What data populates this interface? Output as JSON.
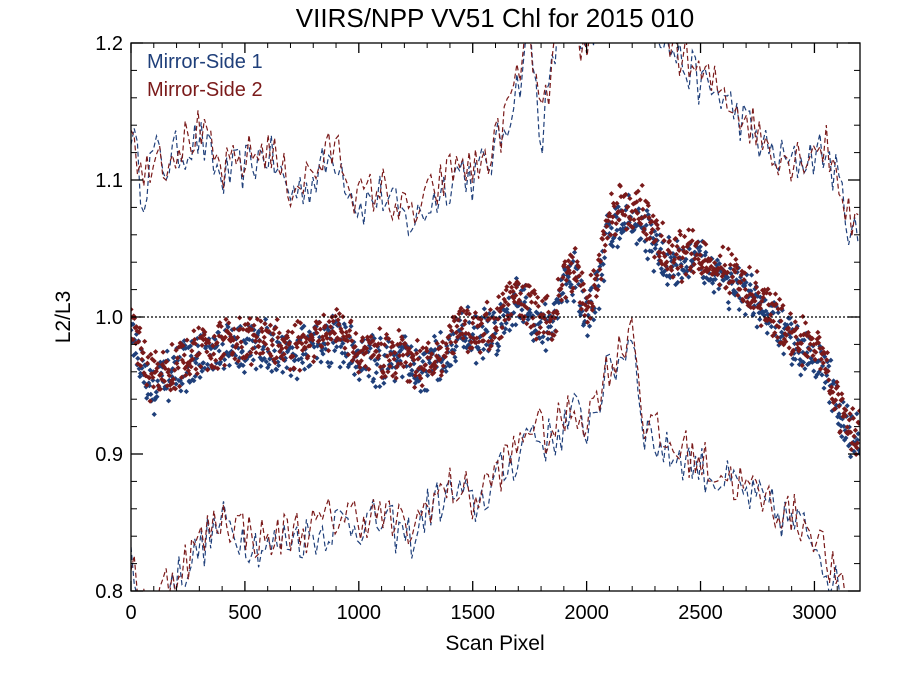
{
  "chart_data": {
    "type": "scatter",
    "title": "VIIRS/NPP VV51 Chl for 2015 010",
    "xlabel": "Scan Pixel",
    "ylabel": "L2/L3",
    "xlim": [
      0,
      3200
    ],
    "ylim": [
      0.8,
      1.2
    ],
    "x_ticks": [
      0,
      500,
      1000,
      1500,
      2000,
      2500,
      3000
    ],
    "x_tick_labels": [
      "0",
      "500",
      "1000",
      "1500",
      "2000",
      "2500",
      "3000"
    ],
    "y_ticks": [
      0.8,
      0.9,
      1.0,
      1.1,
      1.2
    ],
    "y_tick_labels": [
      "0.8",
      "0.9",
      "1.0",
      "1.1",
      "1.2"
    ],
    "grid": false,
    "legend_position": "top-left",
    "reference_line": {
      "y": 1.0,
      "style": "dotted",
      "color": "#000000"
    },
    "series": [
      {
        "name": "Mirror-Side 1",
        "color": "#1f3f7a",
        "marker": "diamond",
        "x": [
          0,
          50,
          100,
          150,
          200,
          300,
          400,
          500,
          600,
          700,
          800,
          900,
          1000,
          1100,
          1200,
          1250,
          1300,
          1400,
          1450,
          1500,
          1600,
          1700,
          1750,
          1800,
          1850,
          1900,
          1950,
          2000,
          2050,
          2100,
          2150,
          2200,
          2250,
          2300,
          2350,
          2400,
          2500,
          2600,
          2700,
          2800,
          2900,
          3000,
          3050,
          3100,
          3150,
          3200
        ],
        "mean": [
          0.995,
          0.96,
          0.945,
          0.955,
          0.96,
          0.97,
          0.975,
          0.978,
          0.98,
          0.972,
          0.978,
          0.985,
          0.97,
          0.968,
          0.972,
          0.958,
          0.962,
          0.975,
          0.99,
          0.985,
          0.99,
          1.015,
          1.0,
          0.995,
          0.99,
          1.025,
          1.03,
          1.0,
          1.02,
          1.065,
          1.07,
          1.07,
          1.065,
          1.05,
          1.04,
          1.04,
          1.04,
          1.03,
          1.015,
          1.0,
          0.98,
          0.975,
          0.96,
          0.935,
          0.915,
          0.91
        ],
        "upper": [
          1.14,
          1.09,
          1.12,
          1.11,
          1.12,
          1.13,
          1.1,
          1.11,
          1.12,
          1.09,
          1.1,
          1.12,
          1.08,
          1.09,
          1.07,
          1.07,
          1.08,
          1.1,
          1.11,
          1.1,
          1.12,
          1.17,
          1.21,
          1.13,
          1.18,
          1.24,
          1.2,
          1.19,
          1.22,
          1.25,
          1.23,
          1.22,
          1.22,
          1.22,
          1.2,
          1.19,
          1.17,
          1.16,
          1.14,
          1.12,
          1.11,
          1.12,
          1.12,
          1.1,
          1.07,
          1.05
        ],
        "lower": [
          0.82,
          0.79,
          0.78,
          0.8,
          0.81,
          0.83,
          0.85,
          0.84,
          0.83,
          0.84,
          0.84,
          0.85,
          0.85,
          0.85,
          0.84,
          0.84,
          0.86,
          0.87,
          0.87,
          0.86,
          0.88,
          0.9,
          0.92,
          0.91,
          0.91,
          0.92,
          0.93,
          0.92,
          0.94,
          0.96,
          0.97,
          0.99,
          0.92,
          0.91,
          0.9,
          0.9,
          0.89,
          0.88,
          0.87,
          0.86,
          0.85,
          0.84,
          0.82,
          0.8,
          0.78,
          0.77
        ]
      },
      {
        "name": "Mirror-Side 2",
        "color": "#7a1a1a",
        "marker": "diamond",
        "x": [
          0,
          50,
          100,
          150,
          200,
          300,
          400,
          500,
          600,
          700,
          800,
          900,
          1000,
          1100,
          1200,
          1250,
          1300,
          1400,
          1450,
          1500,
          1600,
          1700,
          1750,
          1800,
          1850,
          1900,
          1950,
          2000,
          2050,
          2100,
          2150,
          2200,
          2250,
          2300,
          2350,
          2400,
          2500,
          2600,
          2700,
          2800,
          2900,
          3000,
          3050,
          3100,
          3150,
          3200
        ],
        "mean": [
          1.0,
          0.965,
          0.955,
          0.96,
          0.965,
          0.975,
          0.98,
          0.982,
          0.985,
          0.975,
          0.982,
          0.99,
          0.975,
          0.972,
          0.976,
          0.962,
          0.968,
          0.98,
          0.995,
          0.99,
          0.995,
          1.02,
          1.005,
          1.0,
          0.995,
          1.03,
          1.035,
          1.005,
          1.03,
          1.075,
          1.08,
          1.08,
          1.075,
          1.06,
          1.045,
          1.045,
          1.045,
          1.035,
          1.02,
          1.005,
          0.985,
          0.98,
          0.965,
          0.94,
          0.92,
          0.915
        ],
        "upper": [
          1.15,
          1.095,
          1.125,
          1.115,
          1.125,
          1.135,
          1.105,
          1.115,
          1.125,
          1.095,
          1.105,
          1.125,
          1.085,
          1.095,
          1.075,
          1.075,
          1.085,
          1.105,
          1.115,
          1.105,
          1.125,
          1.175,
          1.215,
          1.135,
          1.185,
          1.245,
          1.205,
          1.195,
          1.225,
          1.255,
          1.235,
          1.225,
          1.225,
          1.225,
          1.205,
          1.195,
          1.175,
          1.165,
          1.145,
          1.125,
          1.115,
          1.125,
          1.125,
          1.105,
          1.075,
          1.055
        ],
        "lower": [
          0.825,
          0.795,
          0.785,
          0.805,
          0.815,
          0.835,
          0.855,
          0.845,
          0.835,
          0.845,
          0.845,
          0.855,
          0.855,
          0.855,
          0.845,
          0.845,
          0.865,
          0.875,
          0.875,
          0.865,
          0.885,
          0.905,
          0.925,
          0.915,
          0.915,
          0.925,
          0.935,
          0.925,
          0.945,
          0.965,
          0.975,
          1.0,
          0.925,
          0.915,
          0.905,
          0.905,
          0.895,
          0.885,
          0.875,
          0.865,
          0.855,
          0.845,
          0.825,
          0.805,
          0.785,
          0.775
        ]
      }
    ]
  }
}
